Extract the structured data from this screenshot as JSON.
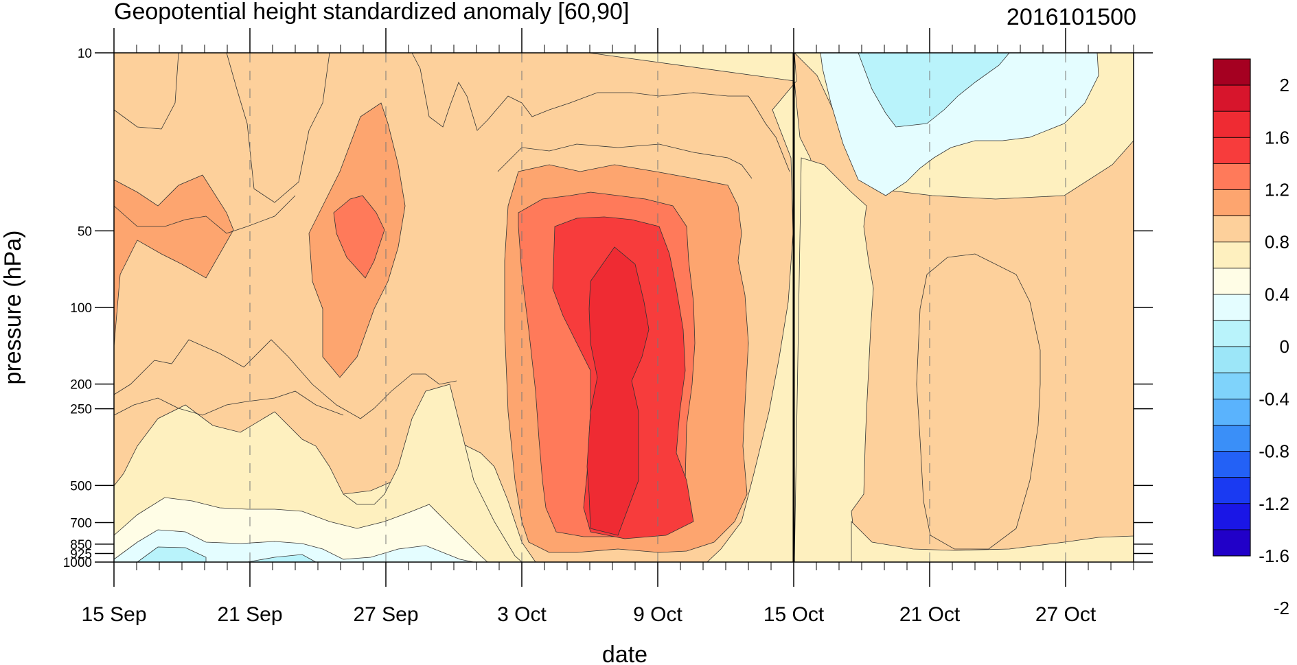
{
  "chart_data": {
    "type": "heatmap",
    "title": "Geopotential height standardized anomaly [60,90]",
    "date_label": "2016101500",
    "xlabel": "date",
    "ylabel": "pressure (hPa)",
    "x_ticks": [
      "15 Sep",
      "21 Sep",
      "27 Sep",
      "3 Oct",
      "9 Oct",
      "15 Oct",
      "21 Oct",
      "27 Oct"
    ],
    "y_ticks": [
      "10",
      "50",
      "100",
      "200",
      "250",
      "500",
      "700",
      "850",
      "925",
      "1000"
    ],
    "y_scale": "log",
    "xlim": [
      "15 Sep",
      "29 Oct"
    ],
    "ylim": [
      1000,
      10
    ],
    "marked_date": "15 Oct",
    "colorbar": {
      "labels": [
        "2",
        "1.6",
        "1.2",
        "0.8",
        "0.4",
        "0",
        "-0.4",
        "-0.8",
        "-1.2",
        "-1.6",
        "-2"
      ],
      "levels": [
        2.2,
        2.0,
        1.8,
        1.6,
        1.4,
        1.2,
        1.0,
        0.8,
        0.6,
        0.4,
        0.2,
        0.0,
        -0.2,
        -0.4,
        -0.6,
        -0.8,
        -1.0,
        -1.2,
        -1.4,
        -1.6,
        -1.8,
        -2.0,
        -2.2
      ],
      "colors": [
        "#a50021",
        "#d7152c",
        "#ef2b33",
        "#f73c3c",
        "#ff7a5a",
        "#fda56f",
        "#fdd09b",
        "#fef0bf",
        "#fffde6",
        "#e4fdff",
        "#b9f3fb",
        "#9ce6f8",
        "#7fd3fb",
        "#5ab3fd",
        "#3a8ff8",
        "#2361f6",
        "#1a3af2",
        "#1a16e6",
        "#2100c8"
      ]
    },
    "anomaly_regions": [
      {
        "level": 0.2,
        "label": "anomaly 0.2-0.4, mid Oct to late Oct upper levels"
      },
      {
        "level": 0.4,
        "label": "anomaly 0.4-0.8 broad background Sep-Oct"
      },
      {
        "level": 0.8,
        "label": "anomaly 0.8-1.2 around 20-27 Sep at 50 hPa"
      },
      {
        "level": 1.2,
        "label": "anomaly 1.2-1.6 core around 5-11 Oct"
      },
      {
        "level": 1.6,
        "label": "anomaly 1.6-2.0 peak around 7-8 Oct, 70-200 hPa"
      },
      {
        "level": -0.2,
        "label": "anomaly -0.2 to -0.6 upper levels 17-27 Oct"
      },
      {
        "level": -0.2,
        "label": "anomaly near 0 to -0.4 near surface mid-late Sep"
      }
    ]
  }
}
